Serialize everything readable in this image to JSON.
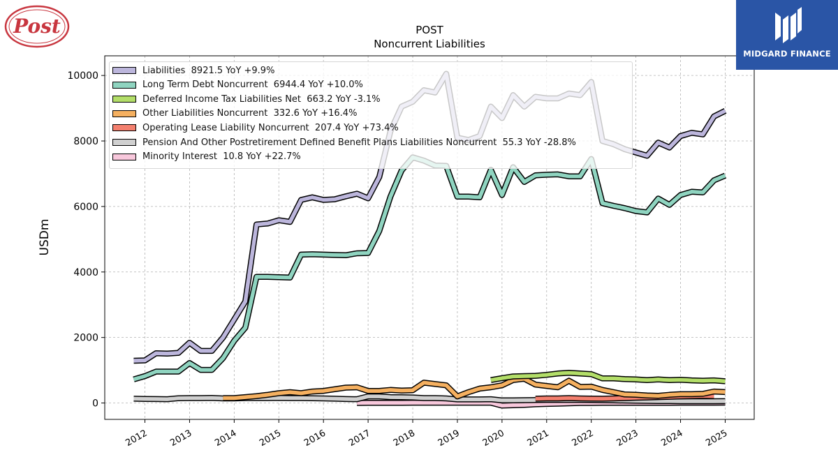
{
  "branding": {
    "logo_left_text": "Post",
    "right_brand_text": "MIDGARD FINANCE",
    "right_brand_color": "#2a55a6"
  },
  "chart_data": {
    "type": "line",
    "title": "POST",
    "subtitle": "Noncurrent  Liabilities",
    "xlabel": "",
    "ylabel": "USDm",
    "ylim": [
      -500,
      10600
    ],
    "xlim": [
      2011.1,
      2025.65
    ],
    "yticks": [
      0,
      2000,
      4000,
      6000,
      8000,
      10000
    ],
    "xticks": [
      "2012",
      "2013",
      "2014",
      "2015",
      "2016",
      "2017",
      "2018",
      "2019",
      "2020",
      "2021",
      "2022",
      "2023",
      "2024",
      "2025"
    ],
    "grid": true,
    "legend_position": "top-left",
    "series": [
      {
        "name": "Liabilities",
        "legend": "Liabilities  8921.5 YoY +9.9%",
        "color": "#bcb6dc",
        "x": [
          2011.75,
          2012.0,
          2012.25,
          2012.5,
          2012.75,
          2013.0,
          2013.25,
          2013.5,
          2013.75,
          2014.0,
          2014.25,
          2014.5,
          2014.75,
          2015.0,
          2015.25,
          2015.5,
          2015.75,
          2016.0,
          2016.25,
          2016.5,
          2016.75,
          2017.0,
          2017.25,
          2017.5,
          2017.75,
          2018.0,
          2018.25,
          2018.5,
          2018.75,
          2019.0,
          2019.25,
          2019.5,
          2019.75,
          2020.0,
          2020.25,
          2020.5,
          2020.75,
          2021.0,
          2021.25,
          2021.5,
          2021.75,
          2022.0,
          2022.25,
          2022.5,
          2022.75,
          2023.0,
          2023.25,
          2023.5,
          2023.75,
          2024.0,
          2024.25,
          2024.5,
          2024.75,
          2025.0
        ],
        "values": [
          1290,
          1300,
          1520,
          1510,
          1530,
          1840,
          1590,
          1590,
          2000,
          2550,
          3100,
          5450,
          5480,
          5580,
          5530,
          6200,
          6280,
          6200,
          6220,
          6310,
          6390,
          6250,
          6900,
          8300,
          9050,
          9200,
          9550,
          9480,
          10050,
          8100,
          8030,
          8150,
          9050,
          8700,
          9400,
          9050,
          9350,
          9300,
          9300,
          9450,
          9400,
          9800,
          8000,
          7900,
          7750,
          7650,
          7550,
          7950,
          7800,
          8150,
          8250,
          8200,
          8750,
          8921.5
        ]
      },
      {
        "name": "Long Term Debt Noncurrent",
        "legend": "Long Term Debt Noncurrent  6944.4 YoY +10.0%",
        "color": "#8fd4c0",
        "x": [
          2011.75,
          2012.0,
          2012.25,
          2012.5,
          2012.75,
          2013.0,
          2013.25,
          2013.5,
          2013.75,
          2014.0,
          2014.25,
          2014.5,
          2014.75,
          2015.0,
          2015.25,
          2015.5,
          2015.75,
          2016.0,
          2016.25,
          2016.5,
          2016.75,
          2017.0,
          2017.25,
          2017.5,
          2017.75,
          2018.0,
          2018.25,
          2018.5,
          2018.75,
          2019.0,
          2019.25,
          2019.5,
          2019.75,
          2020.0,
          2020.25,
          2020.5,
          2020.75,
          2021.0,
          2021.25,
          2021.5,
          2021.75,
          2022.0,
          2022.25,
          2022.5,
          2022.75,
          2023.0,
          2023.25,
          2023.5,
          2023.75,
          2024.0,
          2024.25,
          2024.5,
          2024.75,
          2025.0
        ],
        "values": [
          720,
          820,
          960,
          960,
          960,
          1220,
          1010,
          1010,
          1370,
          1900,
          2300,
          3850,
          3850,
          3840,
          3830,
          4530,
          4540,
          4530,
          4520,
          4510,
          4570,
          4580,
          5250,
          6300,
          7100,
          7500,
          7400,
          7250,
          7240,
          6300,
          6300,
          6280,
          7120,
          6350,
          7200,
          6750,
          6950,
          6970,
          6980,
          6920,
          6920,
          7450,
          6100,
          6020,
          5950,
          5860,
          5820,
          6240,
          6050,
          6350,
          6450,
          6430,
          6800,
          6944.4
        ]
      },
      {
        "name": "Deferred Income Tax Liabilities Net",
        "legend": "Deferred Income Tax Liabilities Net  663.2 YoY -3.1%",
        "color": "#b3de69",
        "x": [
          2019.75,
          2020.0,
          2020.25,
          2020.5,
          2020.75,
          2021.0,
          2021.25,
          2021.5,
          2021.75,
          2022.0,
          2022.25,
          2022.5,
          2022.75,
          2023.0,
          2023.25,
          2023.5,
          2023.75,
          2024.0,
          2024.25,
          2024.5,
          2024.75,
          2025.0
        ],
        "values": [
          700,
          760,
          810,
          820,
          830,
          860,
          900,
          920,
          900,
          880,
          750,
          750,
          730,
          720,
          700,
          720,
          700,
          710,
          690,
          680,
          690,
          663.2
        ]
      },
      {
        "name": "Other Liabilities Noncurrent",
        "legend": "Other Liabilities Noncurrent  332.6 YoY +16.4%",
        "color": "#f5b060",
        "x": [
          2013.75,
          2014.0,
          2014.25,
          2014.5,
          2014.75,
          2015.0,
          2015.25,
          2015.5,
          2015.75,
          2016.0,
          2016.25,
          2016.5,
          2016.75,
          2017.0,
          2017.25,
          2017.5,
          2017.75,
          2018.0,
          2018.25,
          2018.5,
          2018.75,
          2019.0,
          2019.25,
          2019.5,
          2019.75,
          2020.0,
          2020.25,
          2020.5,
          2020.75,
          2021.0,
          2021.25,
          2021.5,
          2021.75,
          2022.0,
          2022.25,
          2022.5,
          2022.75,
          2023.0,
          2023.25,
          2023.5,
          2023.75,
          2024.0,
          2024.25,
          2024.5,
          2024.75,
          2025.0
        ],
        "values": [
          150,
          150,
          180,
          210,
          250,
          300,
          330,
          300,
          350,
          370,
          420,
          470,
          480,
          370,
          370,
          400,
          380,
          390,
          620,
          580,
          540,
          200,
          330,
          440,
          480,
          540,
          700,
          740,
          560,
          520,
          480,
          680,
          490,
          500,
          400,
          330,
          260,
          250,
          230,
          220,
          250,
          270,
          270,
          280,
          350,
          332.6
        ]
      },
      {
        "name": "Operating Lease Liability Noncurrent",
        "legend": "Operating Lease Liability Noncurrent  207.4 YoY +73.4%",
        "color": "#f4806f",
        "x": [
          2020.75,
          2021.0,
          2021.25,
          2021.5,
          2021.75,
          2022.0,
          2022.25,
          2022.5,
          2022.75,
          2023.0,
          2023.25,
          2023.5,
          2023.75,
          2024.0,
          2024.25,
          2024.5,
          2024.75
        ],
        "values": [
          130,
          140,
          140,
          150,
          140,
          135,
          130,
          140,
          150,
          160,
          170,
          180,
          190,
          200,
          210,
          215,
          207.4
        ]
      },
      {
        "name": "Pension And Other Postretirement Defined Benefit Plans Liabilities Noncurrent",
        "legend": "Pension And Other Postretirement Defined Benefit Plans Liabilities Noncurrent  55.3 YoY -28.8%",
        "color": "#d0d0d0",
        "x": [
          2011.75,
          2012.0,
          2012.25,
          2012.5,
          2012.75,
          2013.0,
          2013.25,
          2013.5,
          2013.75,
          2014.0,
          2014.25,
          2014.5,
          2014.75,
          2015.0,
          2015.25,
          2015.5,
          2015.75,
          2016.0,
          2016.25,
          2016.5,
          2016.75,
          2017.0,
          2017.25,
          2017.5,
          2017.75,
          2018.0,
          2018.25,
          2018.5,
          2018.75,
          2019.0,
          2019.25,
          2019.5,
          2019.75,
          2020.0,
          2020.25,
          2020.5,
          2020.75,
          2021.0,
          2021.25,
          2021.5,
          2021.75,
          2022.0,
          2022.25,
          2022.5,
          2022.75,
          2023.0,
          2023.25,
          2023.5,
          2023.75,
          2024.0,
          2024.25,
          2024.5,
          2024.75,
          2025.0
        ],
        "values": [
          130,
          125,
          120,
          115,
          145,
          150,
          150,
          155,
          140,
          140,
          150,
          150,
          150,
          155,
          150,
          150,
          145,
          140,
          130,
          120,
          115,
          200,
          200,
          180,
          175,
          170,
          150,
          150,
          140,
          110,
          110,
          110,
          115,
          80,
          80,
          85,
          90,
          95,
          95,
          95,
          95,
          90,
          85,
          80,
          75,
          70,
          65,
          60,
          60,
          55,
          55,
          55,
          55,
          55.3
        ]
      },
      {
        "name": "Minority Interest",
        "legend": "Minority Interest  10.8 YoY +22.7%",
        "color": "#f8c8dc",
        "x": [
          2016.75,
          2017.0,
          2017.25,
          2017.5,
          2017.75,
          2018.0,
          2018.25,
          2018.5,
          2018.75,
          2019.0,
          2019.25,
          2019.5,
          2019.75,
          2020.0,
          2020.25,
          2020.5,
          2020.75,
          2021.0,
          2021.25,
          2021.5,
          2021.75,
          2022.0,
          2022.25,
          2022.5,
          2022.75,
          2023.0,
          2023.25,
          2023.5,
          2023.75,
          2024.0,
          2024.25,
          2024.5,
          2024.75,
          2025.0
        ],
        "values": [
          0,
          5,
          5,
          8,
          8,
          10,
          10,
          10,
          10,
          10,
          10,
          10,
          10,
          -80,
          -70,
          -60,
          -40,
          -30,
          -20,
          -10,
          0,
          0,
          5,
          5,
          5,
          8,
          8,
          8,
          8,
          10,
          10,
          10,
          10,
          10.8
        ]
      }
    ]
  }
}
